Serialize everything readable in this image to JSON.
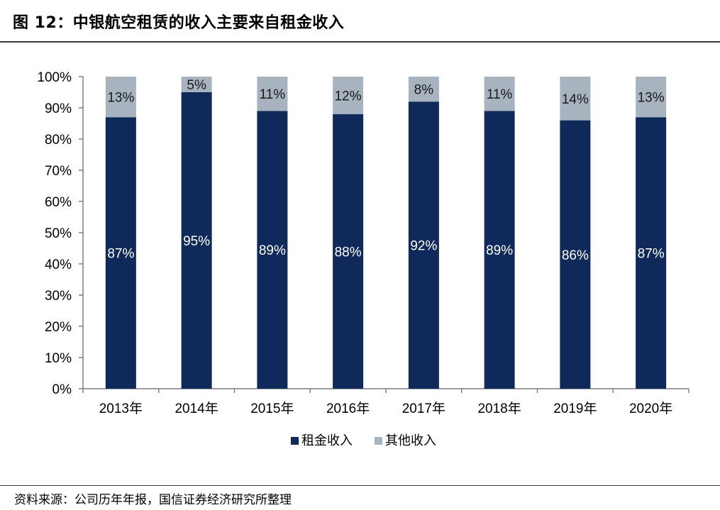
{
  "figure": {
    "title": "图 12：中银航空租赁的收入主要来自租金收入",
    "source": "资料来源：公司历年年报，国信证券经济研究所整理"
  },
  "colors": {
    "rent": "#0f2a5a",
    "other": "#a8b3c0",
    "rent_label": "#ffffff",
    "other_label": "#1a1a1a"
  },
  "chart_data": {
    "type": "bar",
    "stacked": true,
    "categories": [
      "2013年",
      "2014年",
      "2015年",
      "2016年",
      "2017年",
      "2018年",
      "2019年",
      "2020年"
    ],
    "series": [
      {
        "name": "租金收入",
        "values": [
          87,
          95,
          89,
          88,
          92,
          89,
          86,
          87
        ],
        "labels": [
          "87%",
          "95%",
          "89%",
          "88%",
          "92%",
          "89%",
          "86%",
          "87%"
        ]
      },
      {
        "name": "其他收入",
        "values": [
          13,
          5,
          11,
          12,
          8,
          11,
          14,
          13
        ],
        "labels": [
          "13%",
          "5%",
          "11%",
          "12%",
          "8%",
          "11%",
          "14%",
          "13%"
        ]
      }
    ],
    "ylim": [
      0,
      100
    ],
    "yticks": [
      "0%",
      "10%",
      "20%",
      "30%",
      "40%",
      "50%",
      "60%",
      "70%",
      "80%",
      "90%",
      "100%"
    ],
    "legend": "bottom-center",
    "grid": false
  }
}
